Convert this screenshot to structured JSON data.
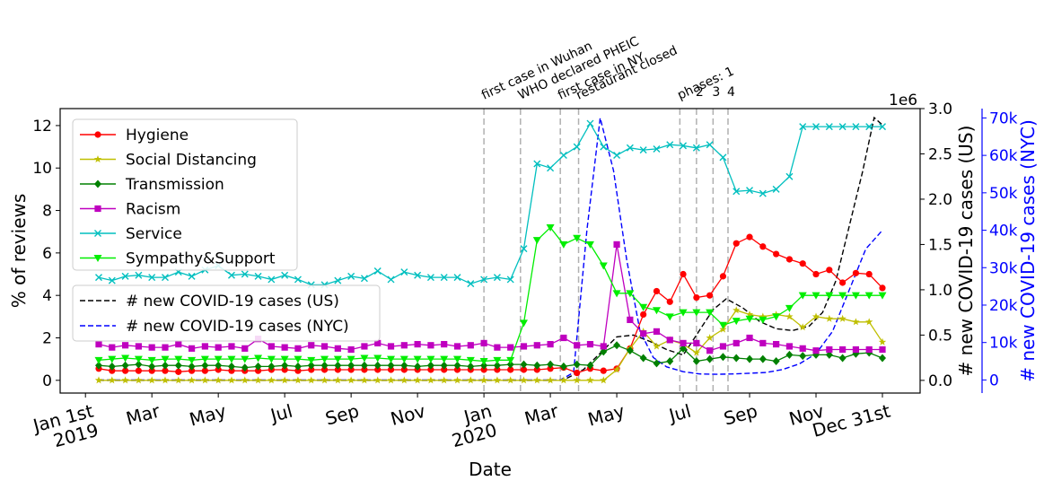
{
  "chart_data": {
    "type": "line",
    "xlabel": "Date",
    "ylabel": "% of reviews",
    "y2label": "# new COVID-19 cases (US)",
    "y3label": "# new COVID-19 cases (NYC)",
    "y2_offset_label": "1e6",
    "ylim": [
      -0.6,
      12.8
    ],
    "y2lim": [
      -0.14,
      3.0
    ],
    "y3lim": [
      -3500,
      72500
    ],
    "y_ticks": [
      "0",
      "2",
      "4",
      "6",
      "8",
      "10",
      "12"
    ],
    "y2_ticks": [
      "0.0",
      "0.5",
      "1.0",
      "1.5",
      "2.0",
      "2.5",
      "3.0"
    ],
    "y3_ticks": [
      "0",
      "10k",
      "20k",
      "30k",
      "40k",
      "50k",
      "60k",
      "70k"
    ],
    "x_ticks": [
      {
        "m": 0,
        "label": "Jan 1st\n2019"
      },
      {
        "m": 2,
        "label": "Mar"
      },
      {
        "m": 4,
        "label": "May"
      },
      {
        "m": 6,
        "label": "Jul"
      },
      {
        "m": 8,
        "label": "Sep"
      },
      {
        "m": 10,
        "label": "Nov"
      },
      {
        "m": 12,
        "label": "Jan\n2020"
      },
      {
        "m": 14,
        "label": "Mar"
      },
      {
        "m": 16,
        "label": "May"
      },
      {
        "m": 18,
        "label": "Jul"
      },
      {
        "m": 20,
        "label": "Sep"
      },
      {
        "m": 22,
        "label": "Nov"
      },
      {
        "m": 24,
        "label": "Dec 31st"
      }
    ],
    "events": [
      {
        "m": 12.0,
        "label": "first case in Wuhan",
        "row": 0
      },
      {
        "m": 13.1,
        "label": "WHO declared PHEIC",
        "row": 0
      },
      {
        "m": 14.3,
        "label": "first case in NY",
        "row": 0
      },
      {
        "m": 14.85,
        "label": "restaurant closed",
        "row": 0
      },
      {
        "m": 17.9,
        "label": "phases: 1",
        "row": 0
      },
      {
        "m": 18.4,
        "label": "2",
        "row": 1
      },
      {
        "m": 18.9,
        "label": "3",
        "row": 1
      },
      {
        "m": 19.35,
        "label": "4",
        "row": 1
      }
    ],
    "weeks_x": [
      0.4,
      0.8,
      1.2,
      1.6,
      2.0,
      2.4,
      2.8,
      3.2,
      3.6,
      4.0,
      4.4,
      4.8,
      5.2,
      5.6,
      6.0,
      6.4,
      6.8,
      7.2,
      7.6,
      8.0,
      8.4,
      8.8,
      9.2,
      9.6,
      10.0,
      10.4,
      10.8,
      11.2,
      11.6,
      12.0,
      12.4,
      12.8,
      13.2,
      13.6,
      14.0,
      14.4,
      14.8,
      15.2,
      15.6,
      16.0,
      16.4,
      16.8,
      17.2,
      17.6,
      18.0,
      18.4,
      18.8,
      19.2,
      19.6,
      20.0,
      20.4,
      20.8,
      21.2,
      21.6,
      22.0,
      22.4,
      22.8,
      23.2,
      23.6,
      24.0
    ],
    "series": [
      {
        "name": "Hygiene",
        "color": "#ff0000",
        "marker": "circle",
        "axis": "left",
        "values": [
          0.55,
          0.45,
          0.45,
          0.45,
          0.45,
          0.45,
          0.4,
          0.45,
          0.45,
          0.5,
          0.45,
          0.45,
          0.45,
          0.5,
          0.5,
          0.45,
          0.5,
          0.5,
          0.5,
          0.5,
          0.5,
          0.5,
          0.5,
          0.5,
          0.5,
          0.5,
          0.5,
          0.5,
          0.5,
          0.5,
          0.5,
          0.5,
          0.5,
          0.5,
          0.55,
          0.6,
          0.35,
          0.55,
          0.45,
          0.55,
          1.5,
          3.1,
          4.2,
          3.7,
          5.0,
          3.9,
          4.0,
          4.9,
          6.45,
          6.75,
          6.3,
          5.95,
          5.7,
          5.5,
          5.0,
          5.2,
          4.6,
          5.05,
          5.0,
          4.35
        ]
      },
      {
        "name": "Social Distancing",
        "color": "#bfbf00",
        "marker": "star",
        "axis": "left",
        "values": [
          0.0,
          0.0,
          0.0,
          0.0,
          0.0,
          0.0,
          0.0,
          0.0,
          0.0,
          0.0,
          0.0,
          0.0,
          0.0,
          0.0,
          0.0,
          0.0,
          0.0,
          0.0,
          0.0,
          0.0,
          0.0,
          0.0,
          0.0,
          0.0,
          0.0,
          0.0,
          0.0,
          0.0,
          0.0,
          0.0,
          0.0,
          0.0,
          0.0,
          0.0,
          0.0,
          0.0,
          0.0,
          0.0,
          0.0,
          0.5,
          1.5,
          2.3,
          1.6,
          1.9,
          1.7,
          1.3,
          2.0,
          2.4,
          3.3,
          3.1,
          3.0,
          3.1,
          3.0,
          2.5,
          3.0,
          2.9,
          2.9,
          2.75,
          2.75,
          1.8
        ]
      },
      {
        "name": "Transmission",
        "color": "#008000",
        "marker": "diamond",
        "axis": "left",
        "values": [
          0.7,
          0.65,
          0.7,
          0.75,
          0.65,
          0.7,
          0.7,
          0.65,
          0.7,
          0.7,
          0.65,
          0.6,
          0.65,
          0.65,
          0.7,
          0.65,
          0.7,
          0.7,
          0.7,
          0.7,
          0.7,
          0.7,
          0.7,
          0.7,
          0.65,
          0.7,
          0.7,
          0.7,
          0.65,
          0.7,
          0.7,
          0.75,
          0.75,
          0.7,
          0.75,
          0.65,
          0.75,
          0.7,
          1.35,
          1.65,
          1.4,
          1.05,
          0.8,
          0.9,
          1.5,
          0.9,
          1.0,
          1.1,
          1.05,
          1.0,
          1.0,
          0.9,
          1.2,
          1.15,
          1.2,
          1.2,
          1.05,
          1.25,
          1.3,
          1.05
        ]
      },
      {
        "name": "Racism",
        "color": "#bf00bf",
        "marker": "square",
        "axis": "left",
        "values": [
          1.7,
          1.55,
          1.65,
          1.6,
          1.55,
          1.55,
          1.7,
          1.5,
          1.6,
          1.55,
          1.6,
          1.5,
          1.95,
          1.6,
          1.55,
          1.5,
          1.65,
          1.6,
          1.5,
          1.45,
          1.6,
          1.75,
          1.6,
          1.65,
          1.7,
          1.65,
          1.7,
          1.6,
          1.65,
          1.75,
          1.55,
          1.55,
          1.6,
          1.65,
          1.7,
          2.0,
          1.65,
          1.7,
          1.6,
          6.4,
          2.85,
          2.2,
          2.3,
          1.9,
          1.75,
          1.75,
          1.4,
          1.6,
          1.75,
          2.0,
          1.75,
          1.7,
          1.6,
          1.5,
          1.4,
          1.45,
          1.45,
          1.45,
          1.45,
          1.45
        ]
      },
      {
        "name": "Service",
        "color": "#00bfbf",
        "marker": "x",
        "axis": "left",
        "values": [
          4.85,
          4.7,
          4.9,
          4.95,
          4.85,
          4.85,
          5.1,
          4.9,
          5.2,
          5.4,
          4.95,
          5.0,
          4.9,
          4.75,
          4.95,
          4.75,
          4.5,
          4.5,
          4.7,
          4.9,
          4.8,
          5.15,
          4.75,
          5.1,
          4.95,
          4.85,
          4.85,
          4.85,
          4.55,
          4.75,
          4.85,
          4.75,
          6.2,
          10.2,
          10.0,
          10.6,
          11.0,
          12.1,
          11.0,
          10.6,
          10.95,
          10.85,
          10.9,
          11.1,
          11.05,
          10.95,
          11.1,
          10.5,
          8.9,
          8.95,
          8.8,
          9.0,
          9.6,
          11.95,
          11.95,
          11.95,
          11.95,
          11.95,
          11.95,
          11.95
        ]
      },
      {
        "name": "Sympathy&Support",
        "color": "#00ee00",
        "marker": "triangle-down",
        "axis": "left",
        "values": [
          0.95,
          1.0,
          1.05,
          1.0,
          0.95,
          1.0,
          1.0,
          0.95,
          1.0,
          1.0,
          1.0,
          1.0,
          1.05,
          1.0,
          1.0,
          1.0,
          0.95,
          1.0,
          1.0,
          1.0,
          1.05,
          1.05,
          1.0,
          1.0,
          1.0,
          1.0,
          1.0,
          1.0,
          0.95,
          0.9,
          0.95,
          0.95,
          2.7,
          6.6,
          7.2,
          6.4,
          6.7,
          6.4,
          5.4,
          4.1,
          4.1,
          3.45,
          3.3,
          3.0,
          3.2,
          3.2,
          3.2,
          2.6,
          2.8,
          2.9,
          2.85,
          3.0,
          3.4,
          4.0,
          4.0,
          4.0,
          4.0,
          4.0,
          4.0,
          4.0
        ]
      }
    ],
    "case_series": [
      {
        "name": "# new COVID-19 cases (US)",
        "color": "#000000",
        "axis": "right-us",
        "points": [
          [
            0.4,
            0.0
          ],
          [
            14.0,
            0.0
          ],
          [
            14.4,
            0.005
          ],
          [
            15.0,
            0.12
          ],
          [
            15.5,
            0.3
          ],
          [
            16.0,
            0.48
          ],
          [
            16.5,
            0.5
          ],
          [
            17.0,
            0.43
          ],
          [
            17.5,
            0.34
          ],
          [
            18.0,
            0.28
          ],
          [
            18.4,
            0.5
          ],
          [
            18.9,
            0.78
          ],
          [
            19.3,
            0.9
          ],
          [
            19.8,
            0.8
          ],
          [
            20.3,
            0.65
          ],
          [
            20.8,
            0.57
          ],
          [
            21.3,
            0.55
          ],
          [
            21.8,
            0.6
          ],
          [
            22.2,
            0.75
          ],
          [
            22.6,
            1.1
          ],
          [
            23.0,
            1.7
          ],
          [
            23.4,
            2.3
          ],
          [
            23.75,
            2.9
          ],
          [
            24.0,
            2.82
          ]
        ]
      },
      {
        "name": "# new COVID-19 cases (NYC)",
        "color": "#0000ff",
        "axis": "right-nyc",
        "points": [
          [
            0.4,
            0.0
          ],
          [
            14.3,
            0.0
          ],
          [
            14.7,
            2000
          ],
          [
            15.1,
            40000
          ],
          [
            15.5,
            70000
          ],
          [
            15.9,
            56000
          ],
          [
            16.3,
            32000
          ],
          [
            16.7,
            13000
          ],
          [
            17.1,
            6000
          ],
          [
            17.5,
            3500
          ],
          [
            18.0,
            2200
          ],
          [
            18.5,
            1600
          ],
          [
            19.0,
            1500
          ],
          [
            19.5,
            1600
          ],
          [
            20.0,
            1800
          ],
          [
            20.5,
            2000
          ],
          [
            21.0,
            2800
          ],
          [
            21.5,
            4300
          ],
          [
            22.0,
            7000
          ],
          [
            22.5,
            13000
          ],
          [
            23.0,
            24000
          ],
          [
            23.5,
            35000
          ],
          [
            24.0,
            40000
          ]
        ]
      }
    ]
  }
}
